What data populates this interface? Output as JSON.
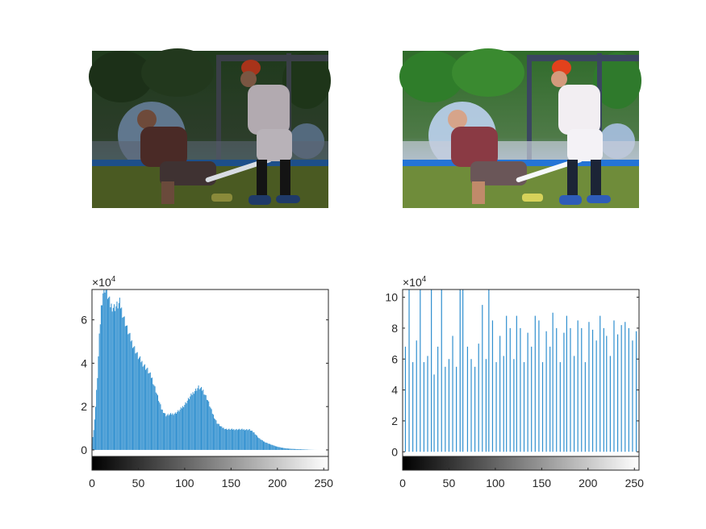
{
  "figure": {
    "layout": "2x2 subplots",
    "top_left_caption": "",
    "top_right_caption": ""
  },
  "photo": {
    "subject": "two ultimate frisbee players on a grass field; one crouching in a maroon shirt holding a white disc, one standing in white shirt and red cap",
    "original_tone": "dark, low contrast",
    "equalized_tone": "bright, high contrast"
  },
  "colors": {
    "bars": "#2f8fcf",
    "axes": "#262626",
    "background": "#ffffff"
  },
  "chart_data": [
    {
      "type": "bar",
      "title": "",
      "xlabel": "",
      "ylabel": "",
      "xlim": [
        0,
        255
      ],
      "ylim": [
        -3000,
        74000
      ],
      "x_ticks": [
        "0",
        "50",
        "100",
        "150",
        "200",
        "250"
      ],
      "y_ticks": [
        "0",
        "2",
        "4",
        "6"
      ],
      "y_exponent": "×10",
      "y_exponent_power": "4",
      "colorbar": "grayscale 0-255 below x axis",
      "series": [
        {
          "values_description": "histogram of original image intensities (counts)",
          "keypoints": [
            [
              0,
              3000
            ],
            [
              2,
              9000
            ],
            [
              4,
              20000
            ],
            [
              6,
              34000
            ],
            [
              8,
              52000
            ],
            [
              10,
              66000
            ],
            [
              12,
              73000
            ],
            [
              14,
              75000
            ],
            [
              16,
              73000
            ],
            [
              18,
              70000
            ],
            [
              20,
              67000
            ],
            [
              24,
              66000
            ],
            [
              28,
              67000
            ],
            [
              30,
              68000
            ],
            [
              34,
              62000
            ],
            [
              38,
              56000
            ],
            [
              42,
              51000
            ],
            [
              46,
              47000
            ],
            [
              50,
              43000
            ],
            [
              55,
              40000
            ],
            [
              60,
              37000
            ],
            [
              65,
              33000
            ],
            [
              70,
              26000
            ],
            [
              75,
              19000
            ],
            [
              80,
              16000
            ],
            [
              85,
              16500
            ],
            [
              90,
              17000
            ],
            [
              95,
              18500
            ],
            [
              100,
              21000
            ],
            [
              105,
              24000
            ],
            [
              110,
              27000
            ],
            [
              115,
              29000
            ],
            [
              120,
              27500
            ],
            [
              125,
              23000
            ],
            [
              130,
              17000
            ],
            [
              135,
              12500
            ],
            [
              140,
              10500
            ],
            [
              145,
              9600
            ],
            [
              150,
              9500
            ],
            [
              160,
              9500
            ],
            [
              170,
              9400
            ],
            [
              175,
              8000
            ],
            [
              180,
              5500
            ],
            [
              185,
              4000
            ],
            [
              190,
              3000
            ],
            [
              195,
              2200
            ],
            [
              200,
              1500
            ],
            [
              205,
              1000
            ],
            [
              210,
              700
            ],
            [
              215,
              500
            ],
            [
              220,
              400
            ],
            [
              225,
              300
            ],
            [
              230,
              200
            ],
            [
              235,
              80
            ],
            [
              240,
              20
            ],
            [
              245,
              0
            ],
            [
              255,
              0
            ]
          ]
        }
      ]
    },
    {
      "type": "bar",
      "title": "",
      "xlabel": "",
      "ylabel": "",
      "xlim": [
        0,
        255
      ],
      "ylim": [
        -3000,
        105000
      ],
      "x_ticks": [
        "0",
        "50",
        "100",
        "150",
        "200",
        "250"
      ],
      "y_ticks": [
        "0",
        "2",
        "4",
        "6",
        "8",
        "10"
      ],
      "y_exponent": "×10",
      "y_exponent_power": "4",
      "colorbar": "grayscale 0-255 below x axis",
      "series": [
        {
          "values_description": "histogram of equalized image intensities (counts, sparse spikes)",
          "spikes": [
            [
              0,
              0
            ],
            [
              3,
              68000
            ],
            [
              7,
              105000
            ],
            [
              11,
              58000
            ],
            [
              15,
              72000
            ],
            [
              19,
              105000
            ],
            [
              23,
              58000
            ],
            [
              27,
              62000
            ],
            [
              31,
              105000
            ],
            [
              34,
              50000
            ],
            [
              38,
              68000
            ],
            [
              42,
              105000
            ],
            [
              46,
              55000
            ],
            [
              50,
              60000
            ],
            [
              54,
              75000
            ],
            [
              58,
              55000
            ],
            [
              62,
              105000
            ],
            [
              65,
              105000
            ],
            [
              70,
              68000
            ],
            [
              74,
              60000
            ],
            [
              78,
              55000
            ],
            [
              82,
              70000
            ],
            [
              86,
              95000
            ],
            [
              90,
              60000
            ],
            [
              93,
              105000
            ],
            [
              97,
              85000
            ],
            [
              101,
              58000
            ],
            [
              105,
              75000
            ],
            [
              109,
              62000
            ],
            [
              112,
              88000
            ],
            [
              116,
              80000
            ],
            [
              120,
              60000
            ],
            [
              123,
              88000
            ],
            [
              127,
              80000
            ],
            [
              131,
              58000
            ],
            [
              135,
              77000
            ],
            [
              139,
              68000
            ],
            [
              143,
              88000
            ],
            [
              147,
              85000
            ],
            [
              151,
              58000
            ],
            [
              155,
              78000
            ],
            [
              159,
              68000
            ],
            [
              162,
              90000
            ],
            [
              166,
              80000
            ],
            [
              170,
              58000
            ],
            [
              174,
              77000
            ],
            [
              177,
              88000
            ],
            [
              181,
              80000
            ],
            [
              185,
              62000
            ],
            [
              189,
              85000
            ],
            [
              193,
              80000
            ],
            [
              197,
              58000
            ],
            [
              201,
              84000
            ],
            [
              205,
              79000
            ],
            [
              209,
              72000
            ],
            [
              213,
              88000
            ],
            [
              217,
              80000
            ],
            [
              220,
              75000
            ],
            [
              224,
              62000
            ],
            [
              228,
              85000
            ],
            [
              232,
              76000
            ],
            [
              236,
              82000
            ],
            [
              240,
              84000
            ],
            [
              244,
              80000
            ],
            [
              248,
              72000
            ],
            [
              252,
              78000
            ]
          ]
        }
      ]
    }
  ]
}
